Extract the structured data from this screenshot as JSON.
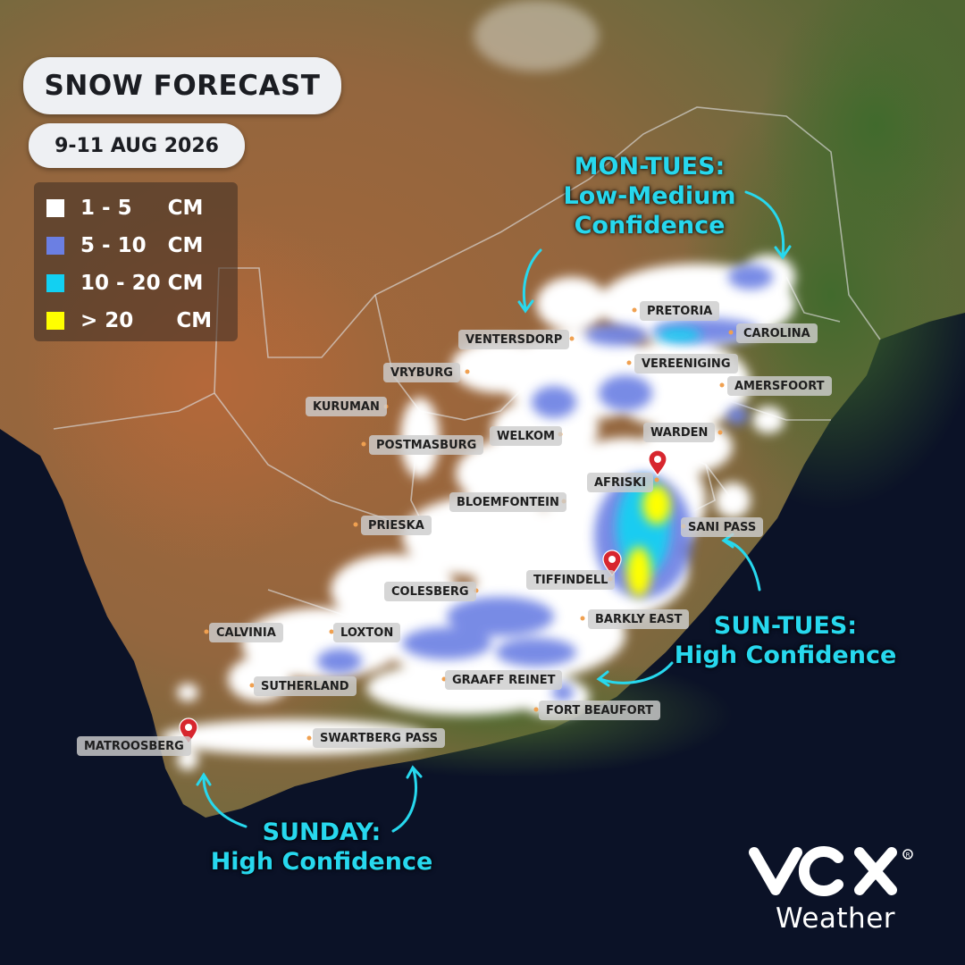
{
  "header": {
    "title": "SNOW FORECAST",
    "date": "9-11 AUG 2026"
  },
  "legend": {
    "items": [
      {
        "label": "1 - 5     CM",
        "color": "#ffffff"
      },
      {
        "label": "5 - 10   CM",
        "color": "#6b7fe3"
      },
      {
        "label": "10 - 20 CM",
        "color": "#12d0f2"
      },
      {
        "label": "> 20      CM",
        "color": "#ffff00"
      }
    ]
  },
  "towns": {
    "pretoria": "PRETORIA",
    "carolina": "CAROLINA",
    "ventersdorp": "VENTERSDORP",
    "vereeniging": "VEREENIGING",
    "vryburg": "VRYBURG",
    "amersfoort": "AMERSFOORT",
    "kuruman": "KURUMAN",
    "warden": "WARDEN",
    "postmasburg": "POSTMASBURG",
    "welkom": "WELKOM",
    "afriski": "AFRISKI",
    "bloemfontein": "BLOEMFONTEIN",
    "prieska": "PRIESKA",
    "sani_pass": "SANI PASS",
    "tiffindell": "TIFFINDELL",
    "colesberg": "COLESBERG",
    "barkly_east": "BARKLY EAST",
    "calvinia": "CALVINIA",
    "loxton": "LOXTON",
    "graaff_reinet": "GRAAFF REINET",
    "sutherland": "SUTHERLAND",
    "fort_beaufort": "FORT BEAUFORT",
    "matroosberg": "MATROOSBERG",
    "swartberg_pass": "SWARTBERG PASS"
  },
  "annotations": {
    "mon_tues": {
      "line1": "MON-TUES:",
      "line2": "Low-Medium",
      "line3": "Confidence"
    },
    "sun_tues": {
      "line1": "SUN-TUES:",
      "line2": "High Confidence"
    },
    "sunday": {
      "line1": "SUNDAY:",
      "line2": "High Confidence"
    }
  },
  "brand": {
    "name": "Weather"
  }
}
